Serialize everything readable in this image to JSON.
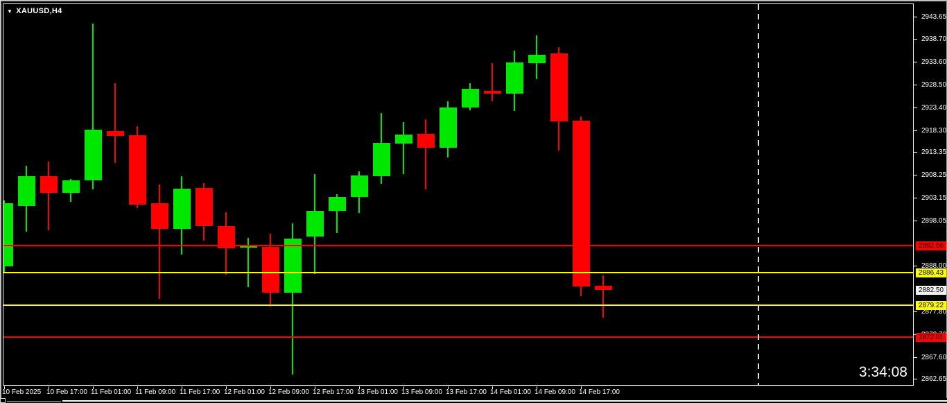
{
  "window": {
    "symbol_label": "XAUUSD,H4",
    "dropdown_icon": "▼",
    "clock": "3:34:08"
  },
  "price_axis": {
    "labels": [
      "2943.65",
      "2938.70",
      "2933.60",
      "2928.50",
      "2923.40",
      "2918.30",
      "2913.35",
      "2908.25",
      "2903.15",
      "2898.05",
      "2888.00",
      "2877.80",
      "2872.70",
      "2867.60",
      "2862.65"
    ],
    "badges": [
      {
        "value": "2892.56",
        "color": "#ff0000",
        "text_color": "#000000",
        "kind": "line-label"
      },
      {
        "value": "2886.43",
        "color": "#ffff00",
        "text_color": "#000000",
        "kind": "line-label"
      },
      {
        "value": "2882.50",
        "color": "#f2f2f2",
        "text_color": "#000000",
        "kind": "bid-price"
      },
      {
        "value": "2879.22",
        "color": "#ffff00",
        "text_color": "#000000",
        "kind": "line-label"
      },
      {
        "value": "2872.01",
        "color": "#ff0000",
        "text_color": "#000000",
        "kind": "line-label"
      }
    ]
  },
  "time_axis": {
    "labels": [
      "10 Feb 2025",
      "10 Feb 17:00",
      "11 Feb 01:00",
      "11 Feb 09:00",
      "11 Feb 17:00",
      "12 Feb 01:00",
      "12 Feb 09:00",
      "12 Feb 17:00",
      "13 Feb 01:00",
      "13 Feb 09:00",
      "13 Feb 17:00",
      "14 Feb 01:00",
      "14 Feb 09:00",
      "14 Feb 17:00"
    ]
  },
  "colors": {
    "background": "#000000",
    "bull": "#00e700",
    "bear": "#ff0000",
    "line_red": "#ff0000",
    "line_yellow": "#ffff00",
    "axis_text": "#ffffff",
    "separator": "#e0e0e0"
  },
  "chart_data": {
    "type": "candlestick",
    "symbol": "XAUUSD",
    "timeframe": "H4",
    "title": "XAUUSD,H4",
    "ylim": [
      2862.65,
      2943.65
    ],
    "grid": false,
    "x": [
      "10 Feb 09:00",
      "10 Feb 13:00",
      "10 Feb 17:00",
      "10 Feb 21:00",
      "11 Feb 01:00",
      "11 Feb 05:00",
      "11 Feb 09:00",
      "11 Feb 13:00",
      "11 Feb 17:00",
      "11 Feb 21:00",
      "12 Feb 01:00",
      "12 Feb 05:00",
      "12 Feb 09:00",
      "12 Feb 13:00",
      "12 Feb 17:00",
      "12 Feb 21:00",
      "13 Feb 01:00",
      "13 Feb 05:00",
      "13 Feb 09:00",
      "13 Feb 13:00",
      "13 Feb 17:00",
      "13 Feb 21:00",
      "14 Feb 01:00",
      "14 Feb 05:00",
      "14 Feb 09:00",
      "14 Feb 13:00",
      "14 Feb 17:00",
      "14 Feb 21:00"
    ],
    "ohlc": [
      [
        2887.8,
        2902.6,
        2886.5,
        2901.9
      ],
      [
        2901.4,
        2910.3,
        2895.6,
        2908.0
      ],
      [
        2908.0,
        2911.2,
        2895.9,
        2904.3
      ],
      [
        2904.3,
        2907.3,
        2902.2,
        2907.0
      ],
      [
        2907.0,
        2942.1,
        2905.1,
        2918.4
      ],
      [
        2918.1,
        2928.8,
        2910.9,
        2917.0
      ],
      [
        2917.2,
        2919.1,
        2900.8,
        2901.7
      ],
      [
        2901.9,
        2906.1,
        2880.6,
        2896.2
      ],
      [
        2896.2,
        2908.0,
        2890.4,
        2905.2
      ],
      [
        2905.4,
        2906.4,
        2893.6,
        2896.8
      ],
      [
        2896.8,
        2900.0,
        2885.9,
        2891.9
      ],
      [
        2892.0,
        2894.2,
        2883.2,
        2892.4
      ],
      [
        2892.2,
        2895.1,
        2878.9,
        2881.9
      ],
      [
        2881.9,
        2897.4,
        2863.7,
        2894.0
      ],
      [
        2894.5,
        2908.4,
        2886.2,
        2900.3
      ],
      [
        2900.3,
        2903.9,
        2895.3,
        2903.4
      ],
      [
        2903.4,
        2909.0,
        2899.7,
        2908.1
      ],
      [
        2908.0,
        2922.1,
        2906.3,
        2915.5
      ],
      [
        2915.2,
        2920.1,
        2908.4,
        2917.3
      ],
      [
        2917.5,
        2920.7,
        2905.1,
        2914.3
      ],
      [
        2914.3,
        2924.8,
        2912.1,
        2923.4
      ],
      [
        2923.3,
        2928.8,
        2922.7,
        2927.6
      ],
      [
        2927.1,
        2933.2,
        2924.8,
        2926.4
      ],
      [
        2926.5,
        2936.1,
        2922.5,
        2933.4
      ],
      [
        2933.2,
        2939.4,
        2929.7,
        2935.1
      ],
      [
        2935.4,
        2936.9,
        2913.8,
        2920.2
      ],
      [
        2920.4,
        2921.3,
        2881.2,
        2883.3
      ],
      [
        2883.5,
        2885.8,
        2876.4,
        2882.5
      ]
    ],
    "horizontal_lines": [
      {
        "price": 2892.56,
        "color": "#ff0000",
        "style": "solid"
      },
      {
        "price": 2886.43,
        "color": "#ffff00",
        "style": "solid"
      },
      {
        "price": 2879.22,
        "color": "#ffff00",
        "style": "solid"
      },
      {
        "price": 2872.01,
        "color": "#ff0000",
        "style": "solid"
      }
    ],
    "bid_price": 2882.5,
    "vertical_separator_x": 1093,
    "legend_position": "none"
  }
}
